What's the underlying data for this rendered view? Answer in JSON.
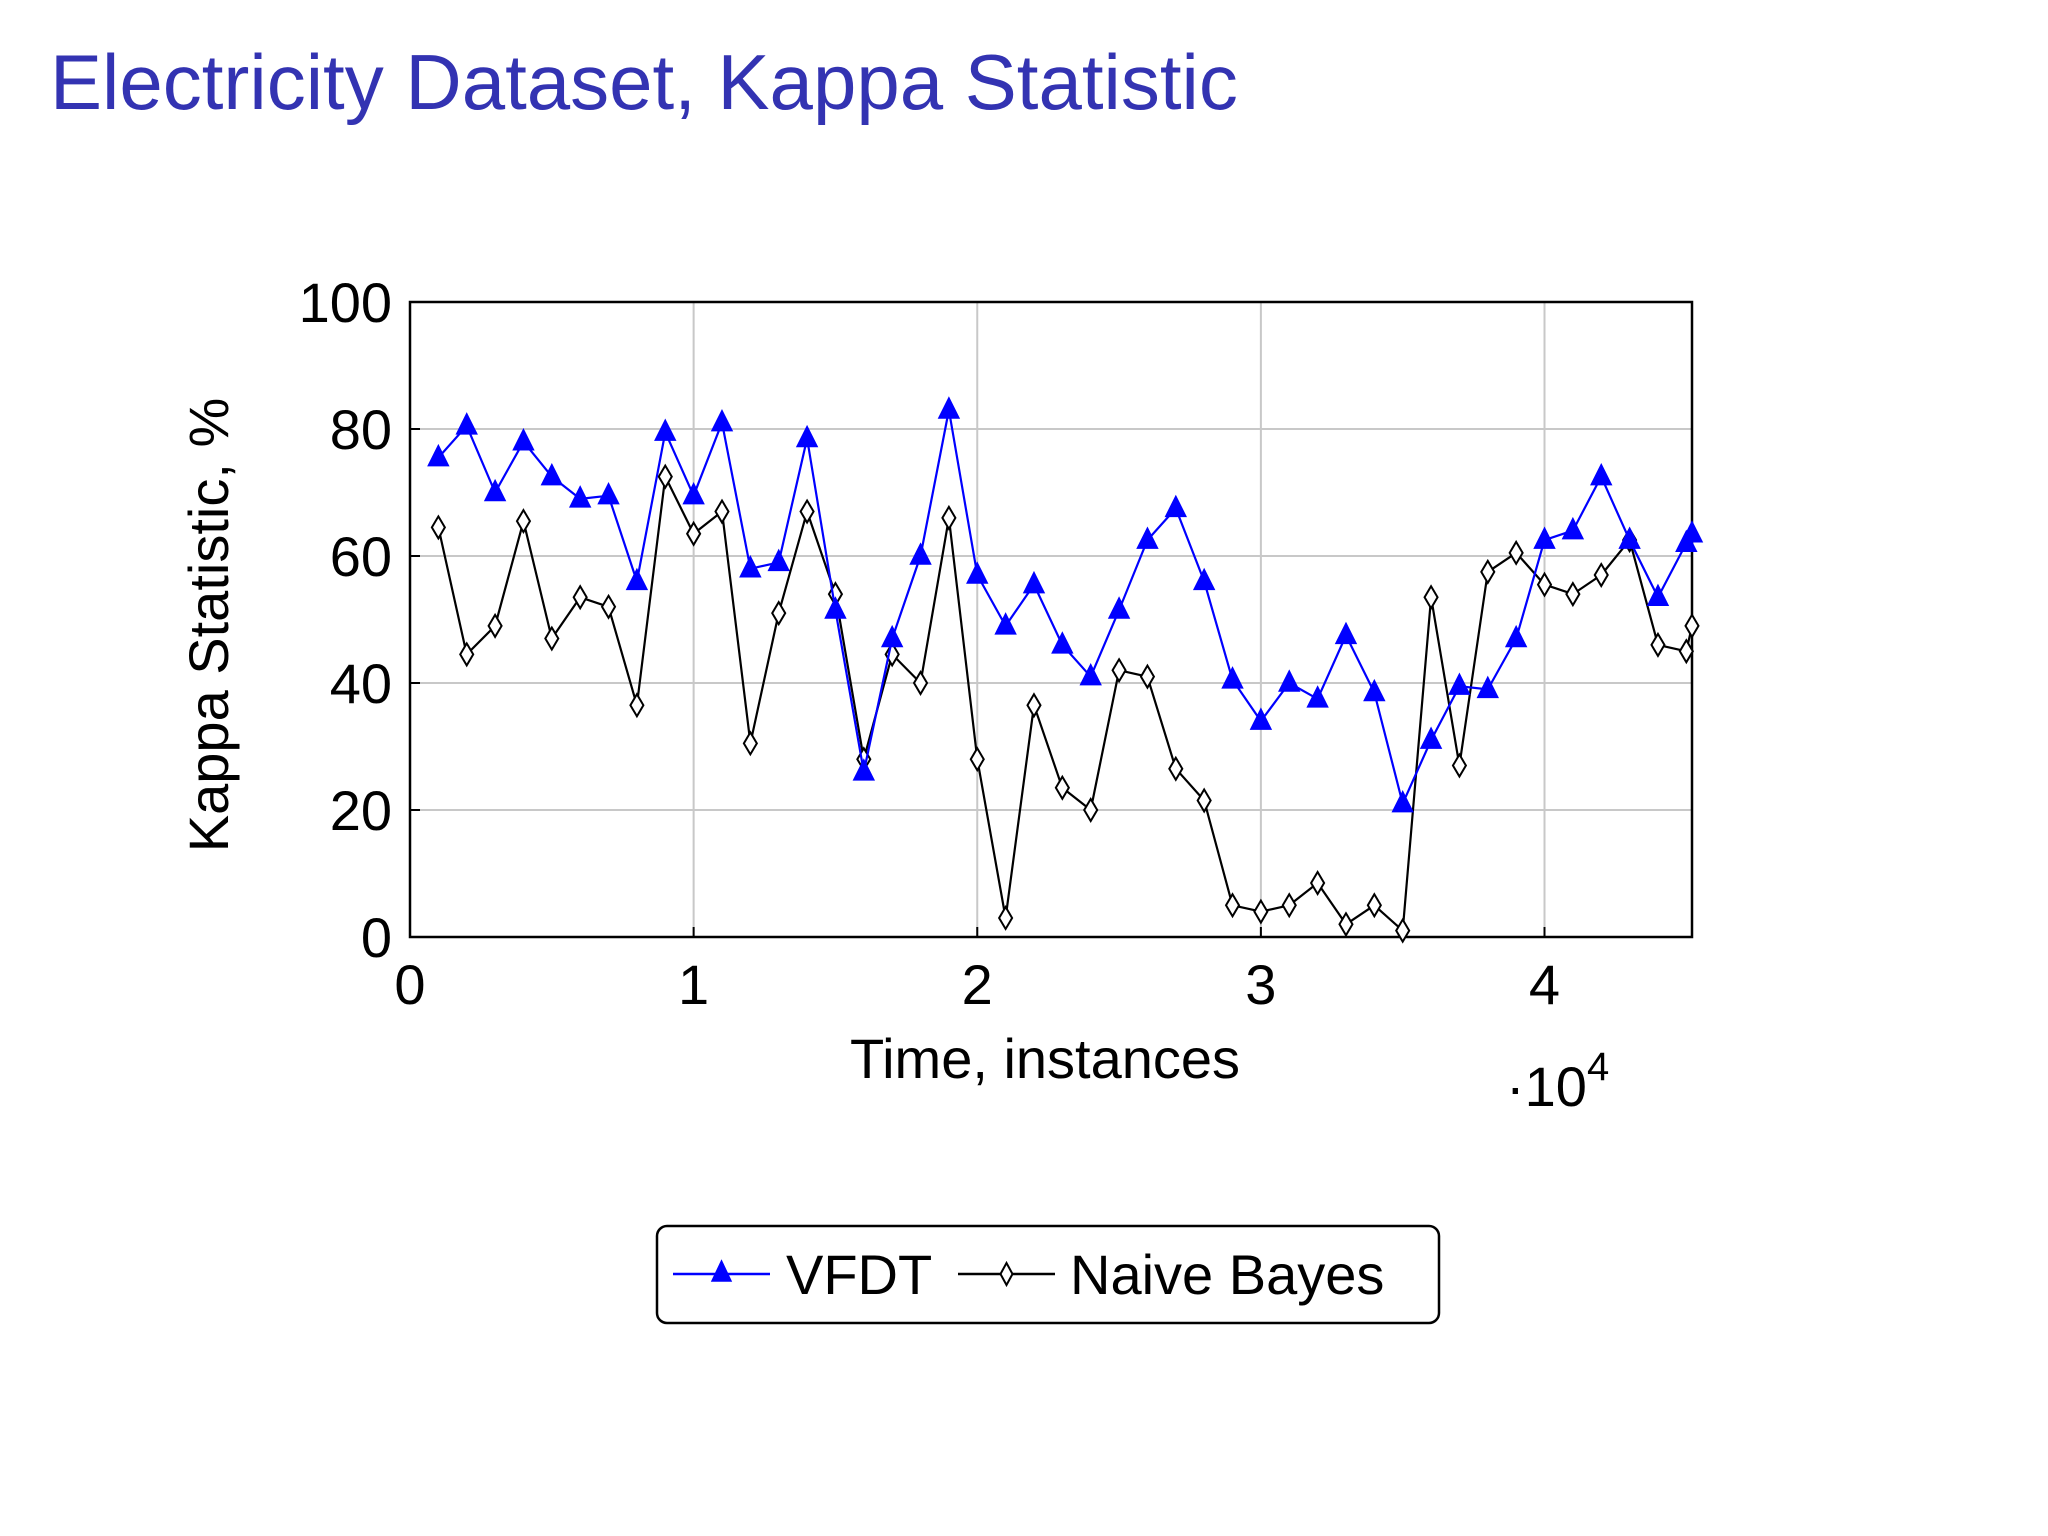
{
  "slide": {
    "title": "Electricity Dataset, Kappa Statistic"
  },
  "chart_data": {
    "type": "line",
    "title": "",
    "xlabel": "Time, instances",
    "ylabel": "Kappa Statistic, %",
    "x_multiplier_label": "·10",
    "x_multiplier_exponent": "4",
    "xlim": [
      0,
      4.52
    ],
    "ylim": [
      0,
      100
    ],
    "x_ticks": [
      "0",
      "1",
      "2",
      "3",
      "4"
    ],
    "y_ticks": [
      "0",
      "20",
      "40",
      "60",
      "80",
      "100"
    ],
    "grid": true,
    "legend_position": "bottom-center",
    "x": [
      0.1,
      0.2,
      0.3,
      0.4,
      0.5,
      0.6,
      0.7,
      0.8,
      0.9,
      1.0,
      1.1,
      1.2,
      1.3,
      1.4,
      1.5,
      1.6,
      1.7,
      1.8,
      1.9,
      2.0,
      2.1,
      2.2,
      2.3,
      2.4,
      2.5,
      2.6,
      2.7,
      2.8,
      2.9,
      3.0,
      3.1,
      3.2,
      3.3,
      3.4,
      3.5,
      3.6,
      3.7,
      3.8,
      3.9,
      4.0,
      4.1,
      4.2,
      4.3,
      4.4,
      4.5,
      4.52
    ],
    "series": [
      {
        "name": "VFDT",
        "color": "#0000ff",
        "marker": "triangle",
        "values": [
          75.5,
          80.5,
          70,
          78,
          72.5,
          69,
          69.5,
          56,
          79.5,
          69.5,
          81,
          58,
          59,
          78.5,
          51.5,
          26,
          47,
          60,
          83,
          57,
          49,
          55.5,
          46,
          41,
          51.5,
          62.5,
          67.5,
          56,
          40.5,
          34,
          40,
          37.5,
          47.5,
          38.5,
          21,
          31,
          39.5,
          39,
          47,
          62.5,
          64,
          72.5,
          62.5,
          53.5,
          62,
          63.5
        ]
      },
      {
        "name": "Naive Bayes",
        "color": "#000000",
        "marker": "diamond",
        "values": [
          64.5,
          44.5,
          49,
          65.5,
          47,
          53.5,
          52,
          36.5,
          72.5,
          63.5,
          67,
          30.5,
          51,
          67,
          54,
          28,
          44.5,
          40,
          66,
          28,
          3,
          36.5,
          23.5,
          20,
          42,
          41,
          26.5,
          21.5,
          5,
          4,
          5,
          8.5,
          2,
          5,
          1,
          53.5,
          27,
          57.5,
          60.5,
          55.5,
          54,
          57,
          62.5,
          46,
          45,
          49
        ]
      }
    ]
  }
}
